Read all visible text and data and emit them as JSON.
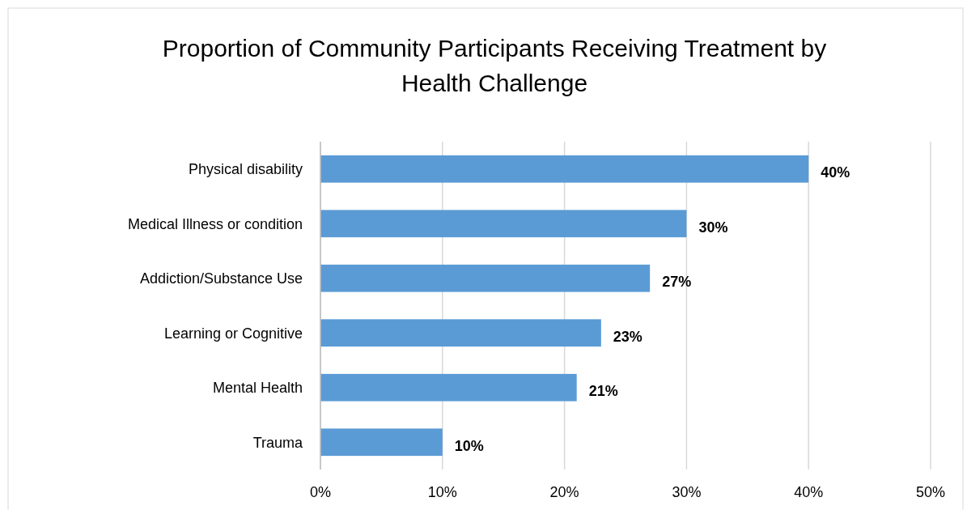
{
  "chart_data": {
    "type": "bar",
    "orientation": "horizontal",
    "title": "Proportion of Community Participants Receiving Treatment by Health Challenge",
    "categories": [
      "Physical disability",
      "Medical Illness or condition",
      "Addiction/Substance Use",
      "Learning or Cognitive",
      "Mental Health",
      "Trauma"
    ],
    "values": [
      40,
      30,
      27,
      23,
      21,
      10
    ],
    "value_labels": [
      "40%",
      "30%",
      "27%",
      "23%",
      "21%",
      "10%"
    ],
    "color": "#5b9bd5",
    "xlim": [
      0,
      50
    ],
    "xticks": [
      {
        "value": 0,
        "label": "0%"
      },
      {
        "value": 10,
        "label": "10%"
      },
      {
        "value": 20,
        "label": "20%"
      },
      {
        "value": 30,
        "label": "30%"
      },
      {
        "value": 40,
        "label": "40%"
      },
      {
        "value": 50,
        "label": "50%"
      }
    ],
    "grid": "x"
  }
}
